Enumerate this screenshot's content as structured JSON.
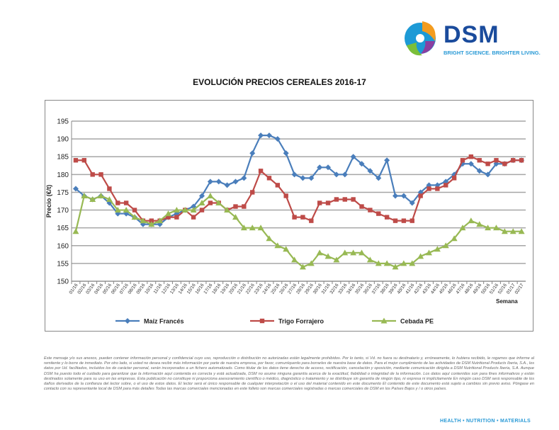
{
  "logo": {
    "name": "DSM",
    "tagline": "BRIGHT SCIENCE. BRIGHTER LIVING."
  },
  "chart_data": {
    "type": "line",
    "title": "EVOLUCIÓN PRECIOS CEREALES 2016-17",
    "xlabel": "Semana",
    "ylabel": "Precio (€/t)",
    "ylim": [
      150,
      195
    ],
    "yticks": [
      150,
      155,
      160,
      165,
      170,
      175,
      180,
      185,
      190,
      195
    ],
    "grid": true,
    "legend_position": "bottom",
    "categories": [
      "01/16",
      "02/16",
      "03/16",
      "04/16",
      "05/16",
      "06/16",
      "07/16",
      "08/16",
      "09/16",
      "10/16",
      "11/16",
      "12/16",
      "13/16",
      "14/16",
      "15/16",
      "16/16",
      "17/16",
      "18/16",
      "19/16",
      "20/16",
      "21/16",
      "22/16",
      "23/16",
      "24/16",
      "25/16",
      "26/16",
      "27/16",
      "28/16",
      "29/16",
      "30/16",
      "31/16",
      "32/16",
      "33/16",
      "34/16",
      "35/16",
      "36/16",
      "37/16",
      "38/16",
      "39/16",
      "40/16",
      "41/16",
      "42/16",
      "43/16",
      "44/16",
      "45/16",
      "46/16",
      "47/16",
      "48/16",
      "49/16",
      "50/16",
      "51/16",
      "52/16",
      "01/17",
      "02/17"
    ],
    "series": [
      {
        "name": "Maíz Francés",
        "color": "#4a7ebb",
        "marker": "diamond",
        "values": [
          176,
          174,
          173,
          174,
          172,
          169,
          169,
          168,
          166,
          166,
          166,
          168,
          169,
          170,
          171,
          174,
          178,
          178,
          177,
          178,
          179,
          186,
          191,
          191,
          190,
          186,
          180,
          179,
          179,
          182,
          182,
          180,
          180,
          185,
          183,
          181,
          179,
          184,
          174,
          174,
          172,
          175,
          177,
          177,
          178,
          180,
          183,
          183,
          181,
          180,
          183,
          183,
          184,
          184
        ]
      },
      {
        "name": "Trigo Forrajero",
        "color": "#be4b48",
        "marker": "square",
        "values": [
          184,
          184,
          180,
          180,
          176,
          172,
          172,
          170,
          167,
          167,
          167,
          168,
          168,
          170,
          168,
          170,
          172,
          172,
          170,
          171,
          171,
          175,
          181,
          179,
          177,
          174,
          168,
          168,
          167,
          172,
          172,
          173,
          173,
          173,
          171,
          170,
          169,
          168,
          167,
          167,
          167,
          174,
          176,
          176,
          177,
          179,
          184,
          185,
          184,
          183,
          184,
          183,
          184,
          184
        ]
      },
      {
        "name": "Cebada PE",
        "color": "#98b954",
        "marker": "triangle",
        "values": [
          164,
          174,
          173,
          174,
          173,
          170,
          170,
          168,
          167,
          166,
          167,
          169,
          170,
          170,
          170,
          172,
          174,
          172,
          170,
          168,
          165,
          165,
          165,
          162,
          160,
          159,
          156,
          154,
          155,
          158,
          157,
          156,
          158,
          158,
          158,
          156,
          155,
          155,
          154,
          155,
          155,
          157,
          158,
          159,
          160,
          162,
          165,
          167,
          166,
          165,
          165,
          164,
          164,
          164
        ]
      }
    ]
  },
  "disclaimer": "Este mensaje y/o sus anexos, pueden contener información personal y confidencial cuyo uso, reproducción o distribución no autorizadas están legalmente prohibidos. Por lo tanto, si Vd. no fuera su destinatario y, erróneamente, lo hubiera recibido, le rogamos que informe al remitente y lo borre de inmediato. Por otro lado, si usted no desea recibir más información por parte de nuestra empresa, por favor, comuníquenlo para borrarles de nuestra base de datos. Para el mejor cumplimiento de las actividades de DSM Nutritional Products Iberia, S.A., los datos por Ud. facilitados, incluidos los de carácter personal, serán incorporados a un fichero automatizado. Como titular de los datos tiene derecho de acceso, rectificación, cancelación y oposición, mediante comunicación dirigida a DSM Nutritional Products Iberia, S.A. Aunque DSM ha puesto todo el cuidado para garantizar que la información aquí contenida es correcta y está actualizada, DSM no asume ninguna garantía acerca de la exactitud, fiabilidad o integridad de la información. Los datos aquí contenidos son para fines informativos y están destinados solamente para su uso en las empresas. Esta publicación no constituye ni proporciona asesoramiento científico o médico, diagnóstico o tratamiento y se distribuye sin garantía de ningún tipo, ni expresa ni implícitamente En ningún caso DSM será responsable de los daños derivados de la confianza del lector sobre, o el uso de estos datos. El lector será el único responsable de cualquier interpretación o el uso del material contenido en este documento El contenido de este documento está sujeto a cambios sin previo aviso. Póngase en contacto con su representante local de DSM para más detalles Todas las marcas comerciales mencionadas en este folleto son marcas comerciales registradas o marcas comerciales de DSM en los Países Bajos y / o otros países.",
  "footer": "HEALTH • NUTRITION • MATERIALS"
}
